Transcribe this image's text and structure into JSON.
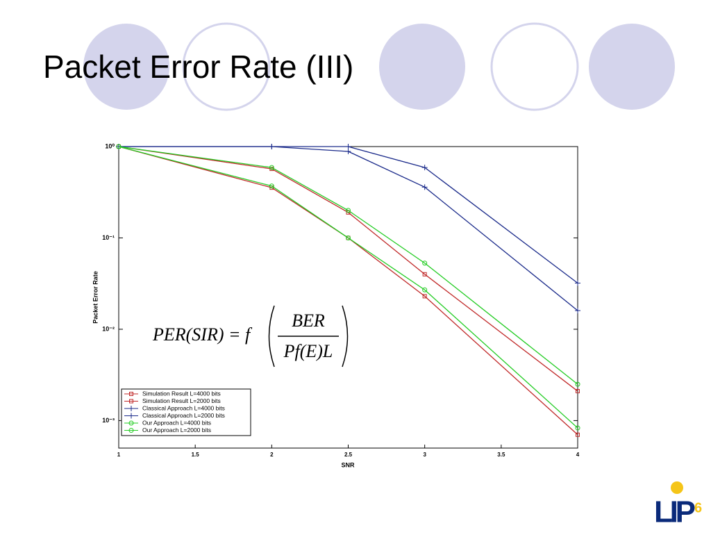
{
  "slide_title": "Packet Error Rate (III)",
  "chart_data": {
    "type": "line",
    "xlabel": "SNR",
    "ylabel": "Packet Error Rate",
    "x": [
      1,
      2,
      2.5,
      3,
      4
    ],
    "xlim": [
      1,
      4
    ],
    "xticks": [
      1,
      1.5,
      2,
      2.5,
      3,
      3.5,
      4
    ],
    "ylim": [
      0.0005,
      1
    ],
    "log_y": true,
    "yticks": [
      {
        "value": 1,
        "label": "10⁰"
      },
      {
        "value": 0.1,
        "label": "10⁻¹"
      },
      {
        "value": 0.01,
        "label": "10⁻²"
      },
      {
        "value": 0.001,
        "label": "10⁻³"
      }
    ],
    "grid": false,
    "legend": "lower left",
    "series": [
      {
        "name": "Simulation Result L=4000 bits",
        "color": "#c02828",
        "marker": "square",
        "values": [
          1,
          0.57,
          0.19,
          0.04,
          0.0021
        ]
      },
      {
        "name": "Simulation Result L=2000 bits",
        "color": "#c02828",
        "marker": "square",
        "values": [
          1,
          0.355,
          0.1,
          0.023,
          0.0007
        ]
      },
      {
        "name": "Classical Approach L=4000 bits",
        "color": "#1a2a8a",
        "marker": "plus",
        "values": [
          1,
          1,
          1,
          0.59,
          0.032
        ]
      },
      {
        "name": "Classical Approach L=2000 bits",
        "color": "#1a2a8a",
        "marker": "plus",
        "values": [
          1,
          1,
          0.885,
          0.36,
          0.016
        ]
      },
      {
        "name": "Our Approach L=4000 bits",
        "color": "#22cc22",
        "marker": "circle",
        "values": [
          1,
          0.59,
          0.2,
          0.053,
          0.0025
        ]
      },
      {
        "name": "Our Approach L=2000 bits",
        "color": "#22cc22",
        "marker": "circle",
        "values": [
          1,
          0.37,
          0.1,
          0.027,
          0.00083
        ]
      }
    ],
    "formula": {
      "lhs": "PER(SIR) = f",
      "numerator": "BER",
      "denominator": "Pf(E)L"
    }
  },
  "logo": {
    "text": "LIP",
    "suffix": "6"
  }
}
